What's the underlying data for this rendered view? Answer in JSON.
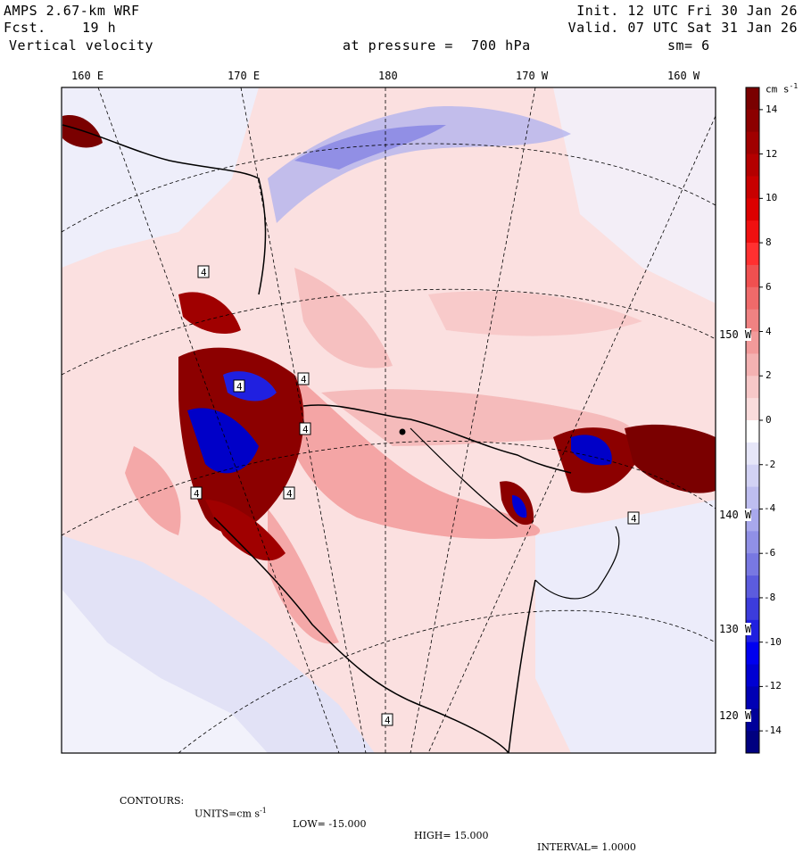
{
  "header": {
    "model": "AMPS 2.67-km WRF",
    "fcst_label": "Fcst.",
    "fcst_value": "19 h",
    "field": "Vertical velocity",
    "init": "Init. 12 UTC Fri 30 Jan 26",
    "valid": "Valid. 07 UTC Sat 31 Jan 26",
    "pressure_label": "at pressure =",
    "pressure_value": "700 hPa",
    "smoothing": "sm= 6"
  },
  "longitude_labels": [
    "160 E",
    "170 E",
    "180",
    "170 W",
    "160 W"
  ],
  "latitude_labels": [
    "150 W",
    "140 W",
    "130 W",
    "120 W"
  ],
  "colorbar": {
    "units": "cm s",
    "units_exp": "-1",
    "ticks": [
      "14",
      "12",
      "10",
      "8",
      "6",
      "4",
      "2",
      "0",
      "-2",
      "-4",
      "-6",
      "-8",
      "-10",
      "-12",
      "-14"
    ],
    "min": -15,
    "max": 15,
    "colors_top_to_bottom": [
      "#7a0000",
      "#8c0000",
      "#a00000",
      "#b40000",
      "#c80000",
      "#dc0000",
      "#f01010",
      "#ff3030",
      "#f05050",
      "#f06a6a",
      "#f08282",
      "#f29a9a",
      "#f4b2b2",
      "#f7c8c8",
      "#fadcdc",
      "#ffffff",
      "#e6e6f8",
      "#d2d2f4",
      "#bebef0",
      "#a8a8ec",
      "#9090e6",
      "#7878e2",
      "#5c5cde",
      "#3c3cdc",
      "#2020e0",
      "#0000f0",
      "#0000d2",
      "#0000b4",
      "#00009a",
      "#000080"
    ]
  },
  "station_labels": [
    "4",
    "4",
    "4",
    "4",
    "4",
    "4",
    "4",
    "4"
  ],
  "footer": {
    "contours": "CONTOURS:",
    "units_label": "UNITS=cm s",
    "units_exp": "-1",
    "low": "LOW= -15.000",
    "high": "HIGH= 15.000",
    "interval": "INTERVAL= 1.0000"
  }
}
